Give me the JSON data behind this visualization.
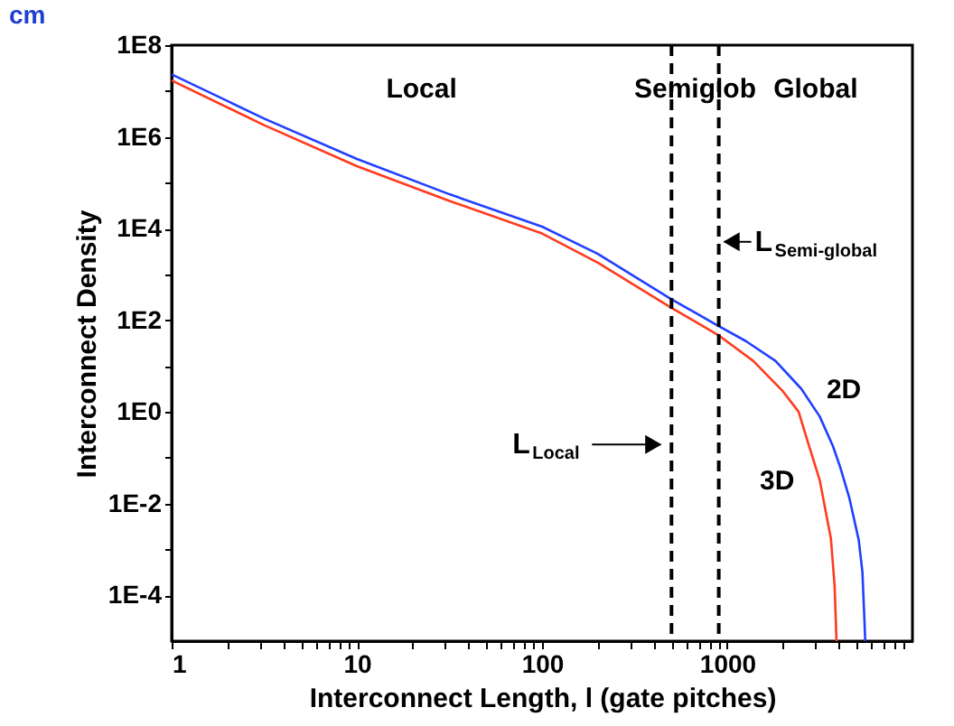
{
  "chart_data": {
    "type": "line",
    "title": "cm",
    "xlabel": "Interconnect Length, l (gate pitches)",
    "ylabel": "Interconnect Density",
    "log": "xy",
    "xlim": [
      1,
      10000
    ],
    "ylim": [
      1e-05,
      100000000.0
    ],
    "xticks": [
      1,
      {
        "value": 2,
        "label": null
      },
      {
        "value": 3,
        "label": null
      },
      {
        "value": 4,
        "label": null
      },
      {
        "value": 5,
        "label": null
      },
      {
        "value": 6,
        "label": null
      },
      {
        "value": 7,
        "label": null
      },
      {
        "value": 8,
        "label": null
      },
      {
        "value": 9,
        "label": null
      },
      10,
      {
        "value": 20,
        "label": null
      },
      {
        "value": 30,
        "label": null
      },
      {
        "value": 40,
        "label": null
      },
      {
        "value": 50,
        "label": null
      },
      {
        "value": 60,
        "label": null
      },
      {
        "value": 70,
        "label": null
      },
      {
        "value": 80,
        "label": null
      },
      {
        "value": 90,
        "label": null
      },
      100,
      {
        "value": 200,
        "label": null
      },
      {
        "value": 300,
        "label": null
      },
      {
        "value": 400,
        "label": null
      },
      {
        "value": 500,
        "label": null
      },
      {
        "value": 600,
        "label": null
      },
      {
        "value": 700,
        "label": null
      },
      {
        "value": 800,
        "label": null
      },
      {
        "value": 900,
        "label": null
      },
      1000,
      {
        "value": 2000,
        "label": null
      },
      {
        "value": 3000,
        "label": null
      },
      {
        "value": 4000,
        "label": null
      },
      {
        "value": 5000,
        "label": null
      },
      {
        "value": 6000,
        "label": null
      },
      {
        "value": 7000,
        "label": null
      },
      {
        "value": 8000,
        "label": null
      },
      {
        "value": 9000,
        "label": null
      }
    ],
    "yticks": [
      {
        "value": 0.0001,
        "label": "1E-4"
      },
      {
        "value": 0.001,
        "label": null
      },
      {
        "value": 0.01,
        "label": "1E-2"
      },
      {
        "value": 0.1,
        "label": null
      },
      {
        "value": 1,
        "label": "1E0"
      },
      {
        "value": 10,
        "label": null
      },
      {
        "value": 100,
        "label": "1E2"
      },
      {
        "value": 1000,
        "label": null
      },
      {
        "value": 10000,
        "label": "1E4"
      },
      {
        "value": 100000,
        "label": null
      },
      {
        "value": 1000000,
        "label": "1E6"
      },
      {
        "value": 10000000,
        "label": null
      },
      {
        "value": 100000000,
        "label": "1E8"
      }
    ],
    "series": [
      {
        "name": "2D",
        "color": "#2040ff",
        "x": [
          1,
          3.16,
          10,
          31.6,
          100,
          200,
          490,
          890,
          1260,
          1820,
          2510,
          3160,
          3720,
          4070,
          4570,
          5130,
          5370,
          5500,
          5560
        ],
        "values": [
          23000000.0,
          2500000.0,
          330000.0,
          56000.0,
          11000.0,
          2800,
          300,
          76,
          35,
          13,
          3.2,
          0.79,
          0.18,
          0.063,
          0.013,
          0.0016,
          0.00032,
          3.2e-05,
          1e-05
        ]
      },
      {
        "name": "3D",
        "color": "#ff3b1f",
        "x": [
          1,
          3.16,
          10,
          31.6,
          100,
          200,
          490,
          890,
          1380,
          2000,
          2430,
          2690,
          3160,
          3630,
          3800,
          3890
        ],
        "values": [
          17000000.0,
          1800000.0,
          230000.0,
          40000.0,
          7800.0,
          1800,
          195,
          48,
          13,
          2.8,
          1,
          0.26,
          0.032,
          0.0017,
          0.00016,
          1e-05
        ]
      }
    ],
    "ref_lines": [
      {
        "axis": "x",
        "value": 500,
        "label": "L$_{Local}$",
        "line_style": "dashed",
        "color": "#000000"
      },
      {
        "axis": "x",
        "value": 900,
        "label": "L$_{Semi-global}$",
        "line_style": "dashed",
        "color": "#000000"
      }
    ],
    "annotations": [
      "Local",
      "Semiglob",
      "Global"
    ]
  }
}
